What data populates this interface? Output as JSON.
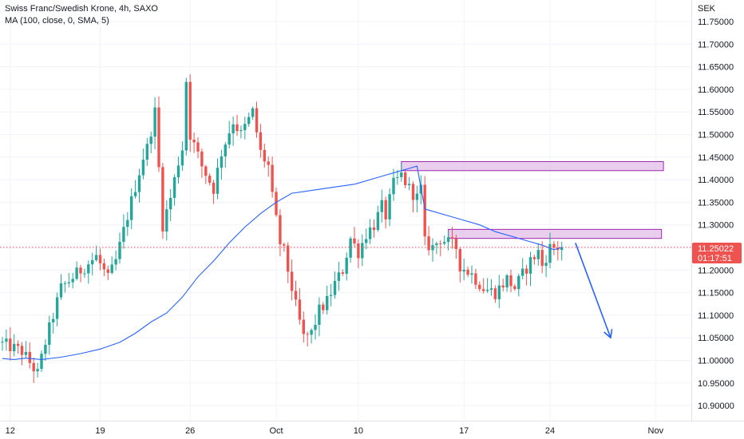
{
  "header": {
    "title": "Swiss Franc/Swedish Krone, 4h, SAXO",
    "indicator": "MA (100, close, 0, SMA, 5)"
  },
  "price_axis": {
    "currency": "SEK",
    "labels": [
      "11.75000",
      "11.70000",
      "11.65000",
      "11.60000",
      "11.55000",
      "11.50000",
      "11.45000",
      "11.40000",
      "11.35000",
      "11.30000",
      "11.25000",
      "11.20000",
      "11.15000",
      "11.10000",
      "11.05000",
      "11.00000",
      "10.95000",
      "10.90000"
    ]
  },
  "last_price": {
    "price": "11.25022",
    "countdown": "01:17:51"
  },
  "time_axis": {
    "labels": [
      "12",
      "19",
      "26",
      "Oct",
      "10",
      "17",
      "24",
      "Nov"
    ]
  },
  "colors": {
    "up": "#26a69a",
    "down": "#ef5350",
    "ma": "#2962ff",
    "zone_fill": "#e1bee7",
    "zone_border": "#9c27b0",
    "arrow": "#2962ff",
    "last_line": "#ef5350",
    "last_tag": "#ef5350"
  },
  "chart_data": {
    "type": "candlestick",
    "symbol": "Swiss Franc/Swedish Krone",
    "interval": "4h",
    "source": "SAXO",
    "ylim": [
      10.875,
      11.775
    ],
    "x_ticks": [
      "12",
      "19",
      "26",
      "Oct",
      "10",
      "17",
      "24",
      "Nov"
    ],
    "y_ticks": [
      10.9,
      10.95,
      11.0,
      11.05,
      11.1,
      11.15,
      11.2,
      11.25,
      11.3,
      11.35,
      11.4,
      11.45,
      11.5,
      11.55,
      11.6,
      11.65,
      11.7,
      11.75
    ],
    "trend": [
      [
        0,
        11.04
      ],
      [
        6,
        11.02
      ],
      [
        10,
        10.97
      ],
      [
        12,
        11.04
      ],
      [
        16,
        11.16
      ],
      [
        21,
        11.2
      ],
      [
        25,
        11.23
      ],
      [
        28,
        11.18
      ],
      [
        30,
        11.22
      ],
      [
        33,
        11.32
      ],
      [
        37,
        11.45
      ],
      [
        38,
        11.47
      ],
      [
        40,
        11.55
      ],
      [
        42,
        11.3
      ],
      [
        44,
        11.36
      ],
      [
        46,
        11.44
      ],
      [
        47,
        11.47
      ],
      [
        48,
        11.62
      ],
      [
        49,
        11.5
      ],
      [
        52,
        11.43
      ],
      [
        55,
        11.38
      ],
      [
        57,
        11.46
      ],
      [
        60,
        11.53
      ],
      [
        62,
        11.5
      ],
      [
        65,
        11.55
      ],
      [
        67,
        11.46
      ],
      [
        69,
        11.43
      ],
      [
        70,
        11.36
      ],
      [
        72,
        11.26
      ],
      [
        73,
        11.24
      ],
      [
        74,
        11.2
      ],
      [
        76,
        11.12
      ],
      [
        78,
        11.05
      ],
      [
        80,
        11.06
      ],
      [
        82,
        11.11
      ],
      [
        84,
        11.13
      ],
      [
        86,
        11.17
      ],
      [
        88,
        11.2
      ],
      [
        90,
        11.27
      ],
      [
        92,
        11.24
      ],
      [
        94,
        11.28
      ],
      [
        96,
        11.3
      ],
      [
        98,
        11.34
      ],
      [
        99,
        11.32
      ],
      [
        101,
        11.39
      ],
      [
        103,
        11.41
      ],
      [
        105,
        11.38
      ],
      [
        107,
        11.36
      ],
      [
        108,
        11.38
      ],
      [
        109,
        11.26
      ],
      [
        111,
        11.25
      ],
      [
        113,
        11.27
      ],
      [
        115,
        11.26
      ],
      [
        117,
        11.25
      ],
      [
        118,
        11.21
      ],
      [
        121,
        11.19
      ],
      [
        124,
        11.16
      ],
      [
        127,
        11.15
      ],
      [
        130,
        11.18
      ],
      [
        132,
        11.16
      ],
      [
        134,
        11.19
      ],
      [
        136,
        11.22
      ],
      [
        138,
        11.24
      ],
      [
        139,
        11.21
      ],
      [
        141,
        11.25
      ],
      [
        143,
        11.25
      ]
    ],
    "moving_average": {
      "name": "MA (100, close, 0, SMA, 5)",
      "points": [
        [
          0,
          11.004
        ],
        [
          3,
          11.002
        ],
        [
          6,
          11.005
        ],
        [
          10,
          11.002
        ],
        [
          15,
          11.007
        ],
        [
          20,
          11.015
        ],
        [
          25,
          11.025
        ],
        [
          30,
          11.04
        ],
        [
          34,
          11.06
        ],
        [
          38,
          11.085
        ],
        [
          42,
          11.105
        ],
        [
          46,
          11.14
        ],
        [
          50,
          11.185
        ],
        [
          54,
          11.22
        ],
        [
          58,
          11.26
        ],
        [
          62,
          11.295
        ],
        [
          66,
          11.325
        ],
        [
          70,
          11.35
        ],
        [
          74,
          11.37
        ],
        [
          78,
          11.375
        ],
        [
          82,
          11.38
        ],
        [
          86,
          11.385
        ],
        [
          90,
          11.39
        ],
        [
          94,
          11.4
        ],
        [
          98,
          11.41
        ],
        [
          102,
          11.42
        ],
        [
          106,
          11.43
        ],
        [
          108,
          11.335
        ],
        [
          110,
          11.33
        ],
        [
          114,
          11.32
        ],
        [
          118,
          11.31
        ],
        [
          122,
          11.3
        ],
        [
          126,
          11.285
        ],
        [
          130,
          11.275
        ],
        [
          134,
          11.265
        ],
        [
          138,
          11.255
        ],
        [
          141,
          11.245
        ],
        [
          143,
          11.25
        ]
      ]
    },
    "annotations": [
      {
        "type": "rectangle",
        "date_range": [
          "Oct 12",
          "Oct 30"
        ],
        "price_range": [
          11.42,
          11.44
        ]
      },
      {
        "type": "rectangle",
        "date_range": [
          "Oct 15",
          "Oct 30"
        ],
        "price_range": [
          11.27,
          11.29
        ]
      },
      {
        "type": "arrow",
        "from": [
          "Oct 25",
          11.26
        ],
        "to": [
          "Oct 28",
          11.05
        ]
      }
    ],
    "last": 11.25022
  }
}
